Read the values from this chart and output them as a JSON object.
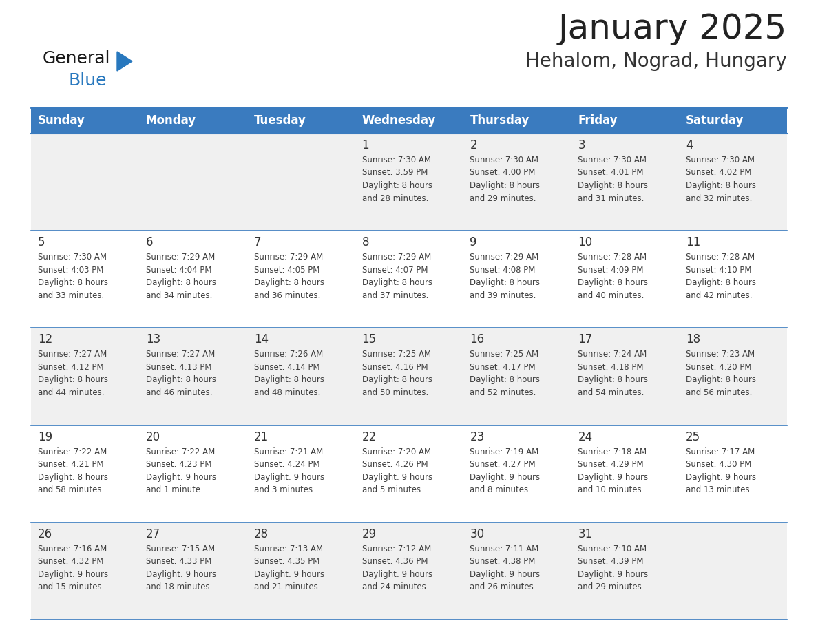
{
  "title": "January 2025",
  "subtitle": "Hehalom, Nograd, Hungary",
  "days_of_week": [
    "Sunday",
    "Monday",
    "Tuesday",
    "Wednesday",
    "Thursday",
    "Friday",
    "Saturday"
  ],
  "header_bg": "#3a7bbf",
  "header_text": "#ffffff",
  "row_bg_odd": "#f0f0f0",
  "row_bg_even": "#ffffff",
  "separator_color": "#3a7bbf",
  "text_color": "#404040",
  "day_num_color": "#333333",
  "calendar_data": [
    [
      {
        "day": null,
        "text": ""
      },
      {
        "day": null,
        "text": ""
      },
      {
        "day": null,
        "text": ""
      },
      {
        "day": 1,
        "text": "Sunrise: 7:30 AM\nSunset: 3:59 PM\nDaylight: 8 hours\nand 28 minutes."
      },
      {
        "day": 2,
        "text": "Sunrise: 7:30 AM\nSunset: 4:00 PM\nDaylight: 8 hours\nand 29 minutes."
      },
      {
        "day": 3,
        "text": "Sunrise: 7:30 AM\nSunset: 4:01 PM\nDaylight: 8 hours\nand 31 minutes."
      },
      {
        "day": 4,
        "text": "Sunrise: 7:30 AM\nSunset: 4:02 PM\nDaylight: 8 hours\nand 32 minutes."
      }
    ],
    [
      {
        "day": 5,
        "text": "Sunrise: 7:30 AM\nSunset: 4:03 PM\nDaylight: 8 hours\nand 33 minutes."
      },
      {
        "day": 6,
        "text": "Sunrise: 7:29 AM\nSunset: 4:04 PM\nDaylight: 8 hours\nand 34 minutes."
      },
      {
        "day": 7,
        "text": "Sunrise: 7:29 AM\nSunset: 4:05 PM\nDaylight: 8 hours\nand 36 minutes."
      },
      {
        "day": 8,
        "text": "Sunrise: 7:29 AM\nSunset: 4:07 PM\nDaylight: 8 hours\nand 37 minutes."
      },
      {
        "day": 9,
        "text": "Sunrise: 7:29 AM\nSunset: 4:08 PM\nDaylight: 8 hours\nand 39 minutes."
      },
      {
        "day": 10,
        "text": "Sunrise: 7:28 AM\nSunset: 4:09 PM\nDaylight: 8 hours\nand 40 minutes."
      },
      {
        "day": 11,
        "text": "Sunrise: 7:28 AM\nSunset: 4:10 PM\nDaylight: 8 hours\nand 42 minutes."
      }
    ],
    [
      {
        "day": 12,
        "text": "Sunrise: 7:27 AM\nSunset: 4:12 PM\nDaylight: 8 hours\nand 44 minutes."
      },
      {
        "day": 13,
        "text": "Sunrise: 7:27 AM\nSunset: 4:13 PM\nDaylight: 8 hours\nand 46 minutes."
      },
      {
        "day": 14,
        "text": "Sunrise: 7:26 AM\nSunset: 4:14 PM\nDaylight: 8 hours\nand 48 minutes."
      },
      {
        "day": 15,
        "text": "Sunrise: 7:25 AM\nSunset: 4:16 PM\nDaylight: 8 hours\nand 50 minutes."
      },
      {
        "day": 16,
        "text": "Sunrise: 7:25 AM\nSunset: 4:17 PM\nDaylight: 8 hours\nand 52 minutes."
      },
      {
        "day": 17,
        "text": "Sunrise: 7:24 AM\nSunset: 4:18 PM\nDaylight: 8 hours\nand 54 minutes."
      },
      {
        "day": 18,
        "text": "Sunrise: 7:23 AM\nSunset: 4:20 PM\nDaylight: 8 hours\nand 56 minutes."
      }
    ],
    [
      {
        "day": 19,
        "text": "Sunrise: 7:22 AM\nSunset: 4:21 PM\nDaylight: 8 hours\nand 58 minutes."
      },
      {
        "day": 20,
        "text": "Sunrise: 7:22 AM\nSunset: 4:23 PM\nDaylight: 9 hours\nand 1 minute."
      },
      {
        "day": 21,
        "text": "Sunrise: 7:21 AM\nSunset: 4:24 PM\nDaylight: 9 hours\nand 3 minutes."
      },
      {
        "day": 22,
        "text": "Sunrise: 7:20 AM\nSunset: 4:26 PM\nDaylight: 9 hours\nand 5 minutes."
      },
      {
        "day": 23,
        "text": "Sunrise: 7:19 AM\nSunset: 4:27 PM\nDaylight: 9 hours\nand 8 minutes."
      },
      {
        "day": 24,
        "text": "Sunrise: 7:18 AM\nSunset: 4:29 PM\nDaylight: 9 hours\nand 10 minutes."
      },
      {
        "day": 25,
        "text": "Sunrise: 7:17 AM\nSunset: 4:30 PM\nDaylight: 9 hours\nand 13 minutes."
      }
    ],
    [
      {
        "day": 26,
        "text": "Sunrise: 7:16 AM\nSunset: 4:32 PM\nDaylight: 9 hours\nand 15 minutes."
      },
      {
        "day": 27,
        "text": "Sunrise: 7:15 AM\nSunset: 4:33 PM\nDaylight: 9 hours\nand 18 minutes."
      },
      {
        "day": 28,
        "text": "Sunrise: 7:13 AM\nSunset: 4:35 PM\nDaylight: 9 hours\nand 21 minutes."
      },
      {
        "day": 29,
        "text": "Sunrise: 7:12 AM\nSunset: 4:36 PM\nDaylight: 9 hours\nand 24 minutes."
      },
      {
        "day": 30,
        "text": "Sunrise: 7:11 AM\nSunset: 4:38 PM\nDaylight: 9 hours\nand 26 minutes."
      },
      {
        "day": 31,
        "text": "Sunrise: 7:10 AM\nSunset: 4:39 PM\nDaylight: 9 hours\nand 29 minutes."
      },
      {
        "day": null,
        "text": ""
      }
    ]
  ],
  "logo_color_general": "#1a1a1a",
  "logo_color_blue": "#2878be",
  "logo_triangle_color": "#2878be",
  "title_fontsize": 36,
  "subtitle_fontsize": 20,
  "header_fontsize": 12,
  "day_num_fontsize": 12,
  "cell_text_fontsize": 8.5
}
